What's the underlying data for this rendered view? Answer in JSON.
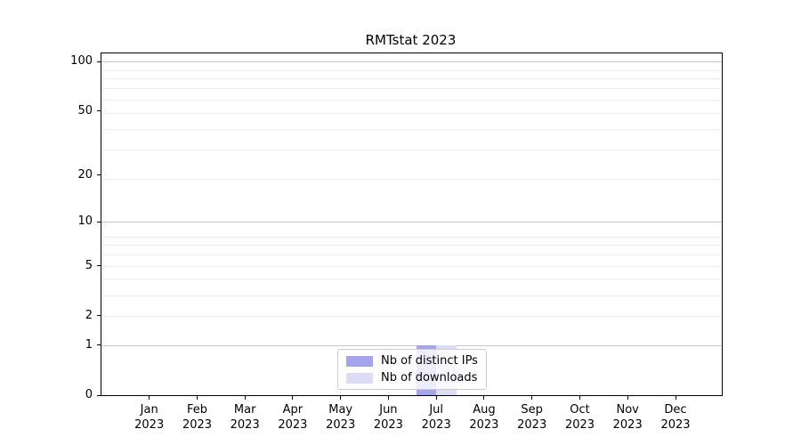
{
  "figure": {
    "title": "RMTstat 2023",
    "background": "#ffffff"
  },
  "chart_data": {
    "type": "bar",
    "title": "RMTstat 2023",
    "categories": [
      "Jan",
      "Feb",
      "Mar",
      "Apr",
      "May",
      "Jun",
      "Jul",
      "Aug",
      "Sep",
      "Oct",
      "Nov",
      "Dec"
    ],
    "category_sublabel": "2023",
    "series": [
      {
        "name": "Nb of distinct IPs",
        "color": "#a5a5ee",
        "values": [
          0,
          0,
          0,
          0,
          0,
          0,
          1,
          0,
          0,
          0,
          0,
          0
        ]
      },
      {
        "name": "Nb of downloads",
        "color": "#dcdcf7",
        "values": [
          0,
          0,
          0,
          0,
          0,
          0,
          1,
          0,
          0,
          0,
          0,
          0
        ]
      }
    ],
    "y_ticks": [
      0,
      1,
      2,
      5,
      10,
      20,
      50,
      100
    ],
    "yscale": "log1p",
    "ylim": [
      0,
      113
    ],
    "grid": "both",
    "legend_position": "lower center",
    "colors": {
      "major_grid": "#c6c6c6",
      "minor_grid": "#ebebeb",
      "axis": "#000000",
      "legend_border": "#cccccc"
    }
  }
}
